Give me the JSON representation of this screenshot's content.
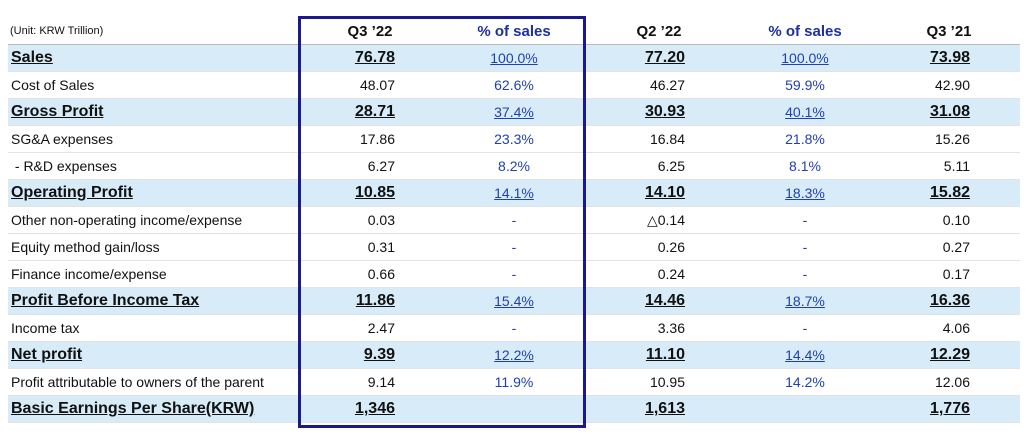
{
  "unit": "(Unit: KRW Trillion)",
  "columns": [
    "Q3 ’22",
    "% of sales",
    "Q2 ’22",
    "% of sales",
    "Q3 ’21"
  ],
  "rows": [
    {
      "label": "Sales",
      "highlight": true,
      "cells": [
        "76.78",
        "100.0%",
        "77.20",
        "100.0%",
        "73.98"
      ]
    },
    {
      "label": "Cost of Sales",
      "highlight": false,
      "cells": [
        "48.07",
        "62.6%",
        "46.27",
        "59.9%",
        "42.90"
      ]
    },
    {
      "label": "Gross Profit",
      "highlight": true,
      "cells": [
        "28.71",
        "37.4%",
        "30.93",
        "40.1%",
        "31.08"
      ]
    },
    {
      "label": "SG&A expenses",
      "highlight": false,
      "cells": [
        "17.86",
        "23.3%",
        "16.84",
        "21.8%",
        "15.26"
      ]
    },
    {
      "label": " - R&D expenses",
      "highlight": false,
      "cells": [
        "6.27",
        "8.2%",
        "6.25",
        "8.1%",
        "5.11"
      ]
    },
    {
      "label": "Operating Profit",
      "highlight": true,
      "cells": [
        "10.85",
        "14.1%",
        "14.10",
        "18.3%",
        "15.82"
      ]
    },
    {
      "label": "Other non-operating income/expense",
      "highlight": false,
      "cells": [
        "0.03",
        "-",
        "△0.14",
        "-",
        "0.10"
      ]
    },
    {
      "label": "Equity method gain/loss",
      "highlight": false,
      "cells": [
        "0.31",
        "-",
        "0.26",
        "-",
        "0.27"
      ]
    },
    {
      "label": "Finance income/expense",
      "highlight": false,
      "cells": [
        "0.66",
        "-",
        "0.24",
        "-",
        "0.17"
      ]
    },
    {
      "label": "Profit Before Income Tax",
      "highlight": true,
      "cells": [
        "11.86",
        "15.4%",
        "14.46",
        "18.7%",
        "16.36"
      ]
    },
    {
      "label": "Income tax",
      "highlight": false,
      "cells": [
        "2.47",
        "-",
        "3.36",
        "-",
        "4.06"
      ]
    },
    {
      "label": "Net profit",
      "highlight": true,
      "cells": [
        "9.39",
        "12.2%",
        "11.10",
        "14.4%",
        "12.29"
      ]
    },
    {
      "label": "Profit attributable to owners of the parent",
      "highlight": false,
      "cells": [
        "9.14",
        "11.9%",
        "10.95",
        "14.2%",
        "12.06"
      ]
    },
    {
      "label": "Basic Earnings Per Share(KRW)",
      "highlight": true,
      "cells": [
        "1,346",
        "",
        "1,613",
        "",
        "1,776"
      ]
    }
  ]
}
